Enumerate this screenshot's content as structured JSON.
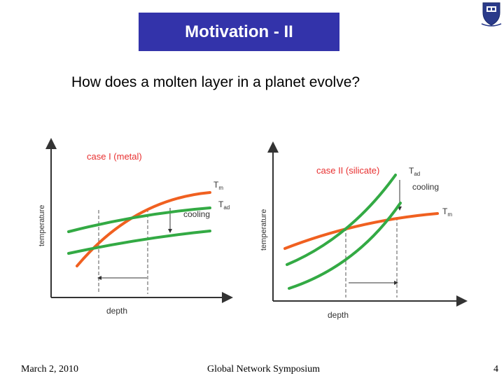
{
  "slide": {
    "title": "Motivation - II",
    "question": "How does a molten layer in a planet evolve?"
  },
  "left_panel": {
    "case_label": "case I (metal)",
    "label_tm": "T",
    "label_tm_sub": "m",
    "label_tad": "T",
    "label_tad_sub": "ad",
    "cooling_label": "cooling",
    "y_axis_label": "temperature",
    "x_axis_label": "depth"
  },
  "right_panel": {
    "case_label": "case II (silicate)",
    "label_tad": "T",
    "label_tad_sub": "ad",
    "label_tm": "T",
    "label_tm_sub": "m",
    "cooling_label": "cooling",
    "y_axis_label": "temperature",
    "x_axis_label": "depth"
  },
  "footer": {
    "date": "March 2, 2010",
    "event": "Global Network Symposium",
    "page": "4"
  },
  "colors": {
    "title_bg": "#3333aa",
    "melting_curve": "#f06020",
    "adiabat": "#33aa44",
    "case_label": "#e83030",
    "axis": "#333333"
  }
}
